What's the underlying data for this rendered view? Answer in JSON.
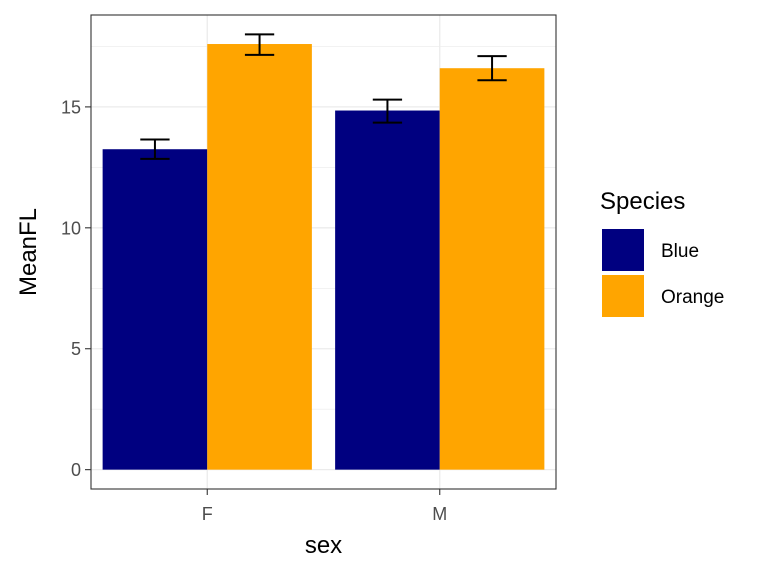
{
  "chart_data": {
    "type": "bar",
    "title": "",
    "xlabel": "sex",
    "ylabel": "MeanFL",
    "categories": [
      "F",
      "M"
    ],
    "ylim": [
      -0.8,
      18.8
    ],
    "yticks": [
      0,
      5,
      10,
      15
    ],
    "grid": true,
    "legend": {
      "title": "Species",
      "position": "right"
    },
    "series": [
      {
        "name": "Blue",
        "color": "#000080",
        "values": [
          13.25,
          14.85
        ],
        "error": [
          [
            12.85,
            13.65
          ],
          [
            14.35,
            15.3
          ]
        ]
      },
      {
        "name": "Orange",
        "color": "#FFA500",
        "values": [
          17.6,
          16.6
        ],
        "error": [
          [
            17.15,
            18.0
          ],
          [
            16.1,
            17.1
          ]
        ]
      }
    ]
  }
}
